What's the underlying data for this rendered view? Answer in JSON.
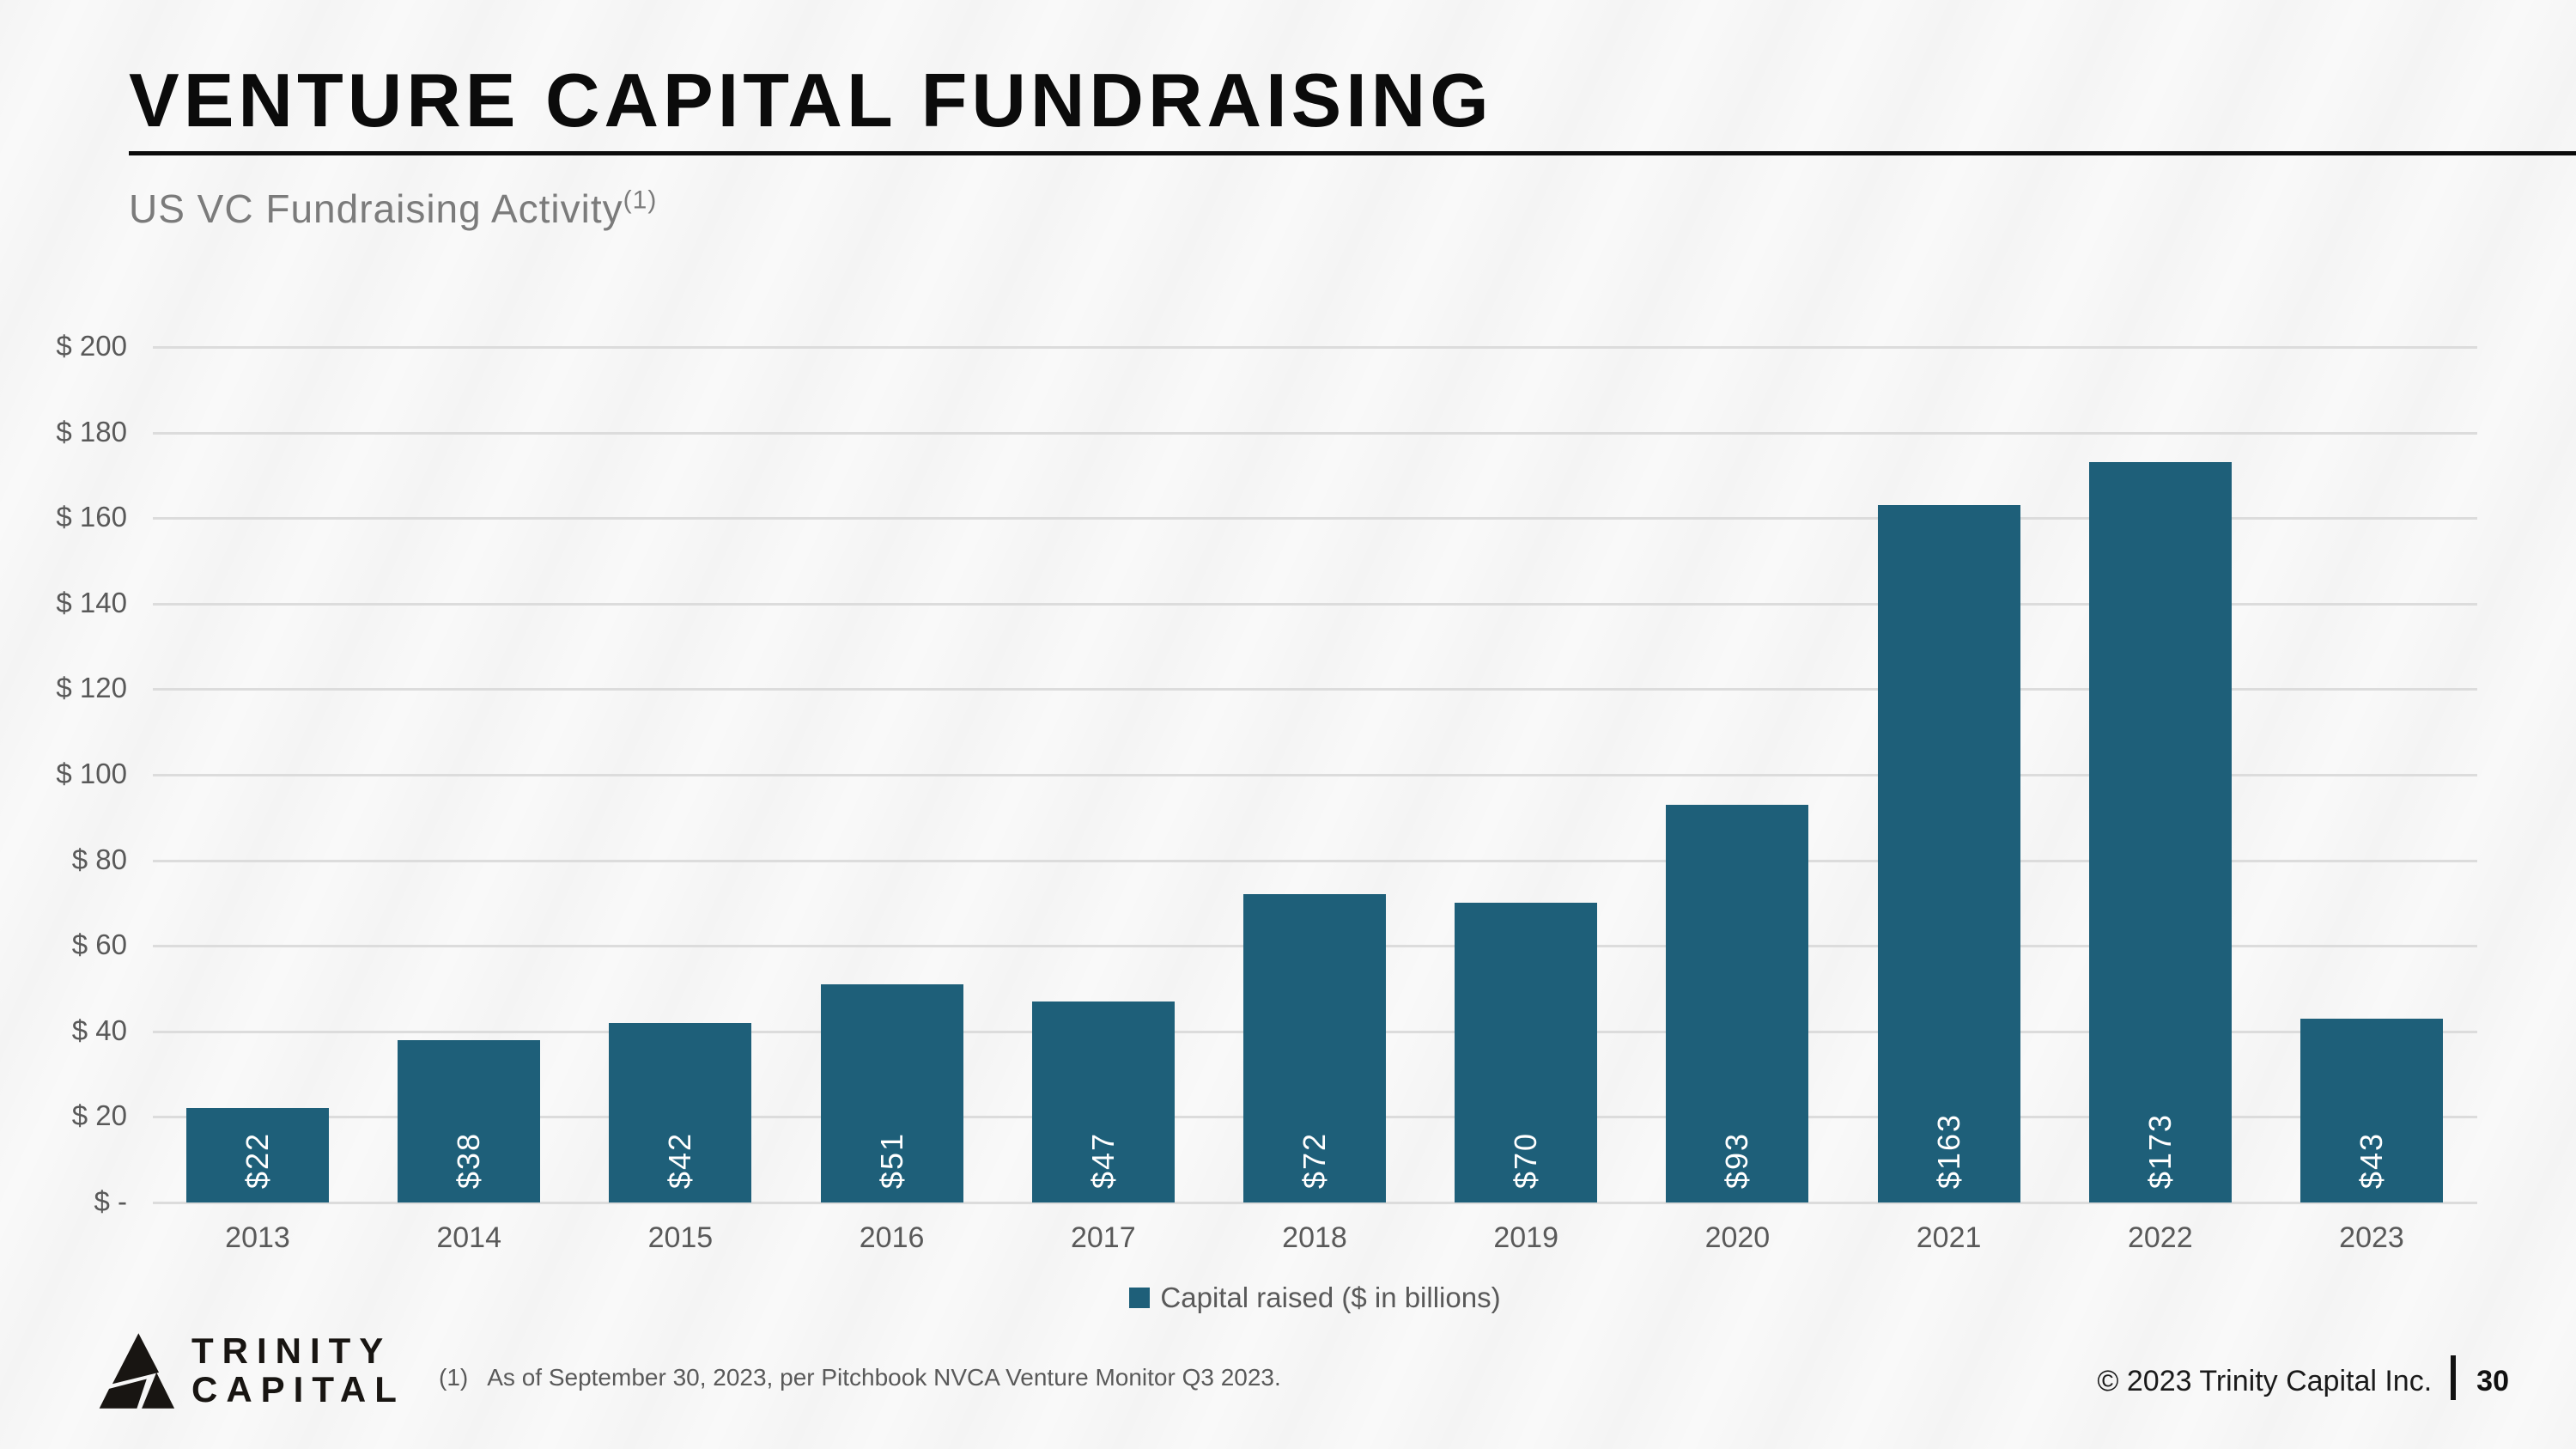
{
  "slide": {
    "title": "VENTURE CAPITAL FUNDRAISING",
    "subtitle": "US VC Fundraising Activity",
    "subtitle_superscript": "(1)",
    "footnote_marker": "(1)",
    "footnote_text": "As of September 30, 2023, per Pitchbook NVCA Venture Monitor Q3 2023.",
    "copyright": "© 2023 Trinity Capital Inc.",
    "page_number": "30",
    "logo": {
      "line1": "TRINITY",
      "line2": "CAPITAL"
    }
  },
  "chart_data": {
    "type": "bar",
    "title": "US VC Fundraising Activity",
    "categories": [
      "2013",
      "2014",
      "2015",
      "2016",
      "2017",
      "2018",
      "2019",
      "2020",
      "2021",
      "2022",
      "2023"
    ],
    "values": [
      22,
      38,
      42,
      51,
      47,
      72,
      70,
      93,
      163,
      173,
      43
    ],
    "bar_labels": [
      "$22",
      "$38",
      "$42",
      "$51",
      "$47",
      "$72",
      "$70",
      "$93",
      "$163",
      "$173",
      "$43"
    ],
    "legend": [
      "Capital raised ($ in billions)"
    ],
    "legend_position": "bottom",
    "xlabel": "",
    "ylabel": "",
    "ylim": [
      0,
      200
    ],
    "ytick_step": 20,
    "yticks": [
      "$ -",
      "$ 20",
      "$ 40",
      "$ 60",
      "$ 80",
      "$ 100",
      "$ 120",
      "$ 140",
      "$ 160",
      "$ 180",
      "$ 200"
    ],
    "grid": true,
    "colors": {
      "bar": "#1e5f79",
      "gridline": "#dcdcdc",
      "axis_text": "#595959",
      "bar_label_text": "#ffffff",
      "title_text": "#0b0b0b",
      "subtitle_text": "#7b7b7b"
    }
  }
}
